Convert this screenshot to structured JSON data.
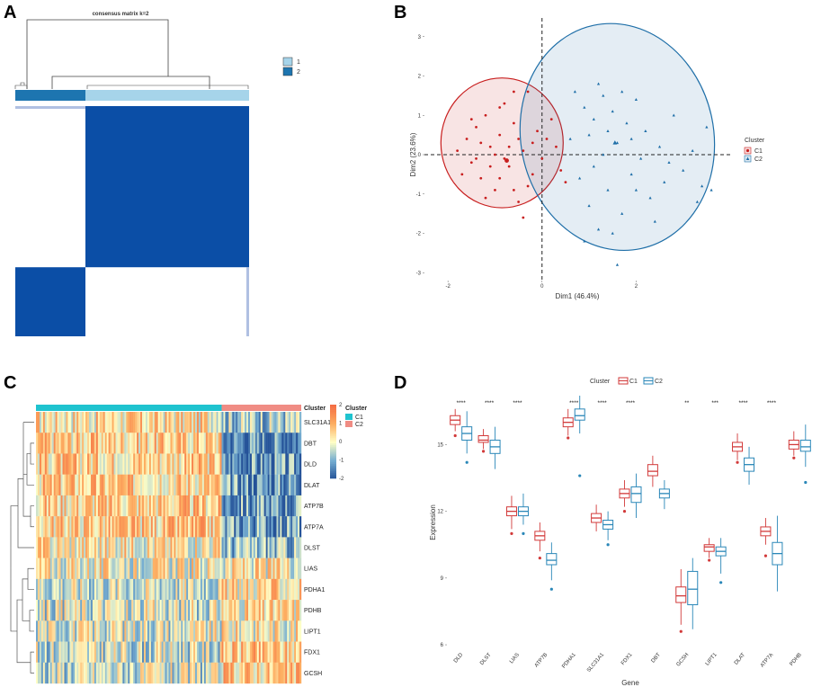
{
  "panels": {
    "a": "A",
    "b": "B",
    "c": "C",
    "d": "D"
  },
  "chart_data": [
    {
      "type": "heatmap",
      "panel": "A",
      "title": "consensus matrix k=2",
      "legend": [
        "1",
        "2"
      ],
      "colors": {
        "high": "#0b4ea6",
        "low": "#ffffff",
        "cluster1": "#a6d4ea",
        "cluster2": "#1d75b0"
      },
      "clusters": [
        {
          "label": "2",
          "fraction": 0.3
        },
        {
          "label": "1",
          "fraction": 0.7
        }
      ]
    },
    {
      "type": "scatter",
      "panel": "B",
      "xlabel": "Dim1 (46.4%)",
      "ylabel": "Dim2 (23.6%)",
      "xlim": [
        -2.5,
        4.0
      ],
      "ylim": [
        -3.2,
        3.2
      ],
      "xticks": [
        "-2",
        "0",
        "2"
      ],
      "yticks": [
        "-3",
        "-2",
        "-1",
        "0",
        "1",
        "2",
        "3"
      ],
      "legend_title": "Cluster",
      "legend_position": "right",
      "series": [
        {
          "name": "C1",
          "color": "#c81e1e",
          "marker": "circle",
          "ellipse": {
            "cx": -0.85,
            "cy": 0.3,
            "rx": 1.3,
            "ry": 1.65
          },
          "points": [
            [
              -1.8,
              0.1
            ],
            [
              -1.6,
              0.4
            ],
            [
              -1.5,
              -0.2
            ],
            [
              -1.4,
              0.7
            ],
            [
              -1.3,
              -0.6
            ],
            [
              -1.2,
              1.0
            ],
            [
              -1.1,
              0.2
            ],
            [
              -1.0,
              -0.9
            ],
            [
              -0.9,
              0.5
            ],
            [
              -0.8,
              1.3
            ],
            [
              -0.7,
              -0.3
            ],
            [
              -0.6,
              0.8
            ],
            [
              -0.5,
              -1.2
            ],
            [
              -0.4,
              0.1
            ],
            [
              -0.3,
              1.6
            ],
            [
              -0.2,
              -0.5
            ],
            [
              -0.1,
              0.6
            ],
            [
              0.0,
              -0.1
            ],
            [
              0.2,
              0.9
            ],
            [
              0.4,
              -0.4
            ],
            [
              -1.7,
              -0.5
            ],
            [
              -1.5,
              0.9
            ],
            [
              -1.3,
              0.3
            ],
            [
              -1.1,
              -0.3
            ],
            [
              -0.9,
              -0.6
            ],
            [
              -0.7,
              0.2
            ],
            [
              -0.5,
              0.4
            ],
            [
              -0.3,
              -0.8
            ],
            [
              -0.2,
              0.3
            ],
            [
              0.1,
              0.4
            ],
            [
              -1.0,
              0.0
            ],
            [
              -0.8,
              -0.1
            ],
            [
              -0.6,
              -0.9
            ],
            [
              -1.2,
              -1.1
            ],
            [
              -0.4,
              -1.6
            ],
            [
              -0.9,
              1.2
            ],
            [
              0.3,
              0.2
            ],
            [
              -1.4,
              -0.1
            ],
            [
              -0.6,
              1.6
            ],
            [
              0.5,
              -0.7
            ]
          ]
        },
        {
          "name": "C2",
          "color": "#1f6fa8",
          "marker": "triangle",
          "ellipse": {
            "cx": 1.6,
            "cy": 0.45,
            "rx": 2.05,
            "ry": 2.9
          },
          "points": [
            [
              0.7,
              1.6
            ],
            [
              0.9,
              1.2
            ],
            [
              1.0,
              0.5
            ],
            [
              1.1,
              -0.3
            ],
            [
              1.2,
              1.8
            ],
            [
              1.3,
              0.0
            ],
            [
              1.4,
              -0.9
            ],
            [
              1.5,
              1.1
            ],
            [
              1.6,
              0.3
            ],
            [
              1.7,
              -1.5
            ],
            [
              1.8,
              0.8
            ],
            [
              1.9,
              -0.5
            ],
            [
              2.0,
              1.4
            ],
            [
              2.1,
              -0.1
            ],
            [
              2.2,
              0.6
            ],
            [
              2.3,
              -1.1
            ],
            [
              2.5,
              0.2
            ],
            [
              2.6,
              -0.7
            ],
            [
              2.8,
              1.0
            ],
            [
              3.0,
              -0.4
            ],
            [
              3.2,
              0.1
            ],
            [
              3.4,
              -0.8
            ],
            [
              3.5,
              0.7
            ],
            [
              1.2,
              -1.9
            ],
            [
              1.5,
              -2.0
            ],
            [
              1.1,
              0.9
            ],
            [
              0.8,
              -0.6
            ],
            [
              1.0,
              -1.3
            ],
            [
              1.4,
              0.6
            ],
            [
              1.9,
              0.4
            ],
            [
              2.4,
              -1.7
            ],
            [
              0.6,
              0.4
            ],
            [
              0.9,
              -2.2
            ],
            [
              1.3,
              1.5
            ],
            [
              2.7,
              -0.2
            ],
            [
              1.6,
              -2.8
            ],
            [
              3.3,
              -1.2
            ],
            [
              2.0,
              -0.9
            ],
            [
              1.7,
              1.6
            ],
            [
              3.6,
              -0.9
            ]
          ]
        }
      ]
    },
    {
      "type": "heatmap",
      "panel": "C",
      "rows": [
        "SLC31A1",
        "DBT",
        "DLD",
        "DLAT",
        "ATP7B",
        "ATP7A",
        "DLST",
        "LIAS",
        "PDHA1",
        "PDHB",
        "LIPT1",
        "FDX1",
        "GCSH"
      ],
      "annotation_title": "Cluster",
      "color_title": "Cluster",
      "colorbar_ticks": [
        "2",
        "1",
        "0",
        "-1",
        "-2"
      ],
      "colorbar_range": [
        -2,
        2
      ],
      "groups": [
        {
          "name": "C1",
          "color": "#1fc3cf",
          "fraction": 0.7
        },
        {
          "name": "C2",
          "color": "#f08c84",
          "fraction": 0.3
        }
      ],
      "c1_tendency": [
        0.4,
        0.6,
        0.6,
        0.6,
        0.6,
        0.6,
        0.3,
        0.1,
        -0.2,
        -0.2,
        -0.1,
        -0.3,
        -0.3
      ],
      "c2_tendency": [
        -0.6,
        -1.3,
        -1.3,
        -1.2,
        -1.2,
        -1.1,
        -0.8,
        0.2,
        0.4,
        0.3,
        0.2,
        0.6,
        0.6
      ]
    },
    {
      "type": "boxplot",
      "panel": "D",
      "title": "",
      "legend_title": "Cluster",
      "legend_position": "top",
      "xlabel": "Gene",
      "ylabel": "Expression",
      "ylim": [
        5.8,
        17.2
      ],
      "yticks": [
        "6",
        "9",
        "12",
        "15"
      ],
      "categories": [
        "DLD",
        "DLST",
        "LIAS",
        "ATP7B",
        "PDHA1",
        "SLC31A1",
        "FDX1",
        "DBT",
        "GCSH",
        "LIPT1",
        "DLAT",
        "ATP7A",
        "PDHB"
      ],
      "significance": [
        "****",
        "****",
        "****",
        "",
        "****",
        "****",
        "****",
        "",
        "**",
        "***",
        "****",
        "****",
        ""
      ],
      "series": [
        {
          "name": "C1",
          "color": "#d23a3a",
          "boxes": [
            [
              15.6,
              15.9,
              16.1,
              16.3,
              16.6
            ],
            [
              14.8,
              15.1,
              15.2,
              15.4,
              15.7
            ],
            [
              11.2,
              11.8,
              12.0,
              12.2,
              12.7
            ],
            [
              10.2,
              10.7,
              10.9,
              11.1,
              11.5
            ],
            [
              15.4,
              15.8,
              16.0,
              16.2,
              16.6
            ],
            [
              11.1,
              11.5,
              11.7,
              11.9,
              12.3
            ],
            [
              12.2,
              12.6,
              12.8,
              13.0,
              13.4
            ],
            [
              13.1,
              13.6,
              13.8,
              14.1,
              14.5
            ],
            [
              6.9,
              7.9,
              8.2,
              8.6,
              9.4
            ],
            [
              9.9,
              10.2,
              10.4,
              10.5,
              10.8
            ],
            [
              14.3,
              14.7,
              14.9,
              15.1,
              15.5
            ],
            [
              10.5,
              10.9,
              11.1,
              11.3,
              11.7
            ],
            [
              14.5,
              14.8,
              15.0,
              15.2,
              15.6
            ]
          ],
          "outliers": [
            [
              15.4
            ],
            [
              14.7
            ],
            [
              11.0
            ],
            [
              9.9
            ],
            [
              15.3
            ],
            [],
            [
              12.0
            ],
            [],
            [
              6.6
            ],
            [
              9.8
            ],
            [
              14.2
            ],
            [
              10.0
            ],
            [
              14.4
            ]
          ]
        },
        {
          "name": "C2",
          "color": "#2a87b8",
          "boxes": [
            [
              14.6,
              15.2,
              15.5,
              15.8,
              16.5
            ],
            [
              13.9,
              14.6,
              14.9,
              15.2,
              15.8
            ],
            [
              11.4,
              11.8,
              12.0,
              12.2,
              12.8
            ],
            [
              8.9,
              9.6,
              9.8,
              10.1,
              10.6
            ],
            [
              15.5,
              16.1,
              16.3,
              16.6,
              17.2
            ],
            [
              10.7,
              11.2,
              11.4,
              11.6,
              12.0
            ],
            [
              11.7,
              12.4,
              12.8,
              13.1,
              13.7
            ],
            [
              12.1,
              12.6,
              12.8,
              13.0,
              13.4
            ],
            [
              6.7,
              7.8,
              8.5,
              9.3,
              9.9
            ],
            [
              9.2,
              10.0,
              10.2,
              10.4,
              10.8
            ],
            [
              13.2,
              13.8,
              14.1,
              14.4,
              14.9
            ],
            [
              8.4,
              9.6,
              10.1,
              10.6,
              11.8
            ],
            [
              14.0,
              14.7,
              14.9,
              15.2,
              15.9
            ]
          ],
          "outliers": [
            [
              14.2
            ],
            [],
            [
              11.0
            ],
            [
              8.5
            ],
            [
              13.6
            ],
            [
              10.5
            ],
            [],
            [],
            [],
            [
              8.8
            ],
            [],
            [],
            [
              13.3
            ]
          ]
        }
      ]
    }
  ]
}
